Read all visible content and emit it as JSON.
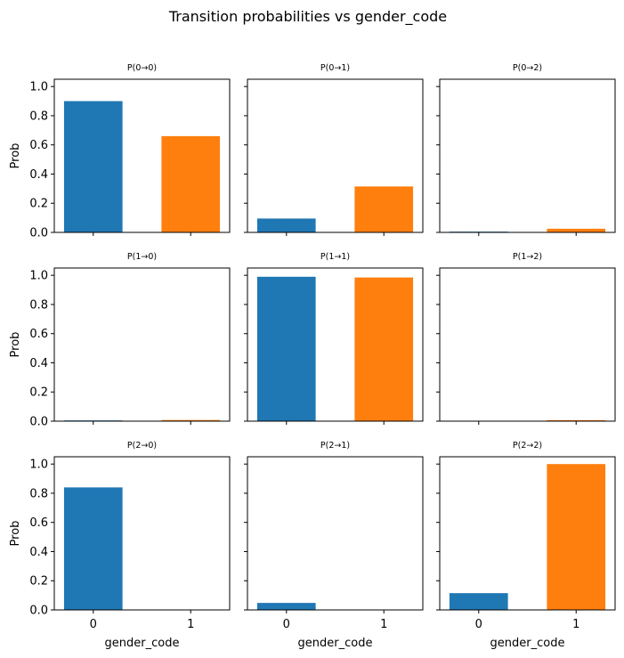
{
  "suptitle": "Transition probabilities vs gender_code",
  "xlabel": "gender_code",
  "ylabel": "Prob",
  "colors": {
    "0": "#1f77b4",
    "1": "#ff7f0e"
  },
  "chart_data": {
    "type": "bar",
    "title": "Transition probabilities vs gender_code",
    "xlabel": "gender_code",
    "ylabel": "Prob",
    "categories": [
      "0",
      "1"
    ],
    "ylim": [
      0,
      1.05
    ],
    "yticks": [
      0.0,
      0.2,
      0.4,
      0.6,
      0.8,
      1.0
    ],
    "grid": false,
    "panels": [
      {
        "title": "P(0→0)",
        "values": [
          0.9,
          0.66
        ]
      },
      {
        "title": "P(0→1)",
        "values": [
          0.095,
          0.315
        ]
      },
      {
        "title": "P(0→2)",
        "values": [
          0.005,
          0.025
        ]
      },
      {
        "title": "P(1→0)",
        "values": [
          0.005,
          0.008
        ]
      },
      {
        "title": "P(1→1)",
        "values": [
          0.99,
          0.985
        ]
      },
      {
        "title": "P(1→2)",
        "values": [
          0.0,
          0.007
        ]
      },
      {
        "title": "P(2→0)",
        "values": [
          0.84,
          0.0
        ]
      },
      {
        "title": "P(2→1)",
        "values": [
          0.048,
          0.0
        ]
      },
      {
        "title": "P(2→2)",
        "values": [
          0.115,
          1.0
        ]
      }
    ]
  }
}
